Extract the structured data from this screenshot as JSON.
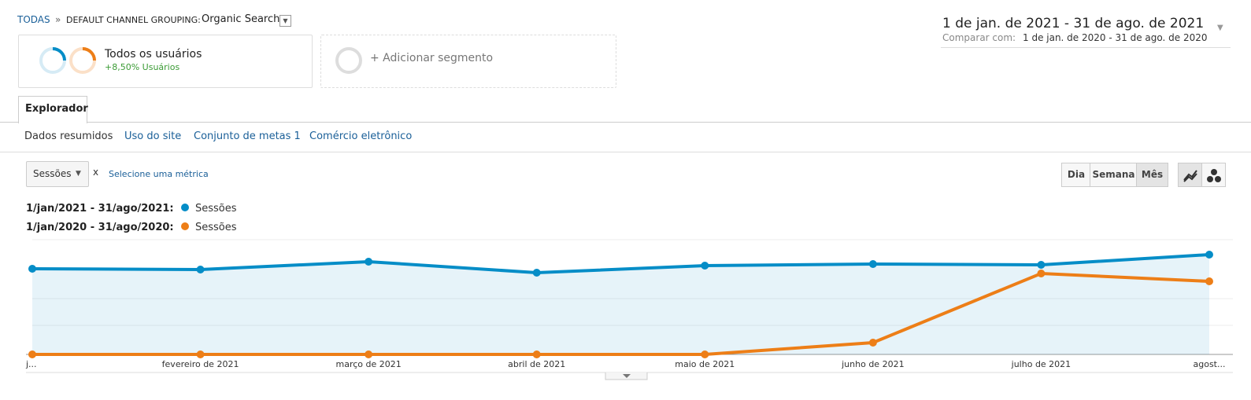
{
  "breadcrumb": {
    "root": "TODAS",
    "separator": "»",
    "dimension": "DEFAULT CHANNEL GROUPING:",
    "value": "Organic Search"
  },
  "segments": [
    {
      "name": "Todos os usuários",
      "detail": "+8,50% Usuários"
    }
  ],
  "add_segment": "+ Adicionar segmento",
  "date_range": {
    "main": "1 de jan. de 2021 - 31 de ago. de 2021",
    "compare_label": "Comparar com:",
    "compare": "1 de jan. de 2020 - 31 de ago. de 2020"
  },
  "tabs": [
    "Explorador"
  ],
  "subtabs": [
    "Dados resumidos",
    "Uso do site",
    "Conjunto de metas 1",
    "Comércio eletrônico"
  ],
  "metric_select": "Sessões",
  "metric_x": "x",
  "metric_link": "Selecione uma métrica",
  "granularity": [
    "Dia",
    "Semana",
    "Mês"
  ],
  "chart_data": {
    "type": "line",
    "categories": [
      "j...",
      "fevereiro de 2021",
      "março de 2021",
      "abril de 2021",
      "maio de 2021",
      "junho de 2021",
      "julho de 2021",
      "agost..."
    ],
    "series": [
      {
        "period": "1/jan/2021 - 31/ago/2021:",
        "name": "Sessões",
        "color": "#058dc7",
        "area": true,
        "values": [
          109,
          108,
          118,
          104,
          113,
          115,
          114,
          127
        ]
      },
      {
        "period": "1/jan/2020 - 31/ago/2020:",
        "name": "Sessões",
        "color": "#ed7e17",
        "area": false,
        "values": [
          0,
          0,
          0,
          0,
          0,
          15,
          103,
          93
        ]
      }
    ],
    "ylim": [
      0,
      146
    ]
  }
}
